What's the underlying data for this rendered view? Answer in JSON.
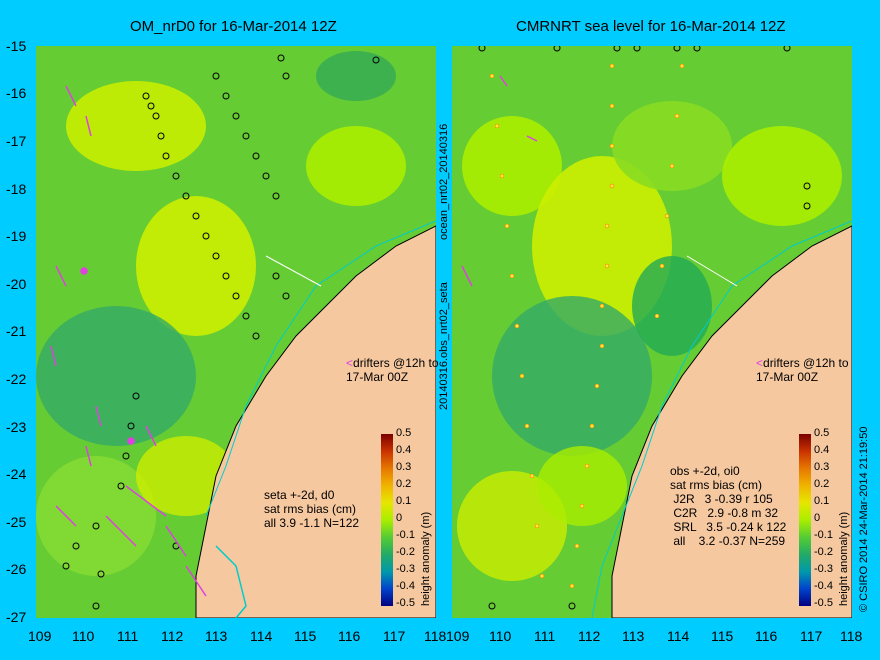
{
  "titles": {
    "left": "OM_nrD0 for 16-Mar-2014 12Z",
    "right": "CMRNRT sea level  for 16-Mar-2014 12Z"
  },
  "y_ticks": [
    "-15",
    "-16",
    "-17",
    "-18",
    "-19",
    "-20",
    "-21",
    "-22",
    "-23",
    "-24",
    "-25",
    "-26",
    "-27"
  ],
  "x_ticks": [
    "109",
    "110",
    "111",
    "112",
    "113",
    "114",
    "115",
    "116",
    "117",
    "118"
  ],
  "side_labels": {
    "left_panel": "ocean_nrt02_20140316",
    "middle": "20140316.obs_nrt02_seta",
    "right_edge": "© CSIRO 2014   24-Mar-2014 21:19:50"
  },
  "drifters": {
    "left": "drifters @12h to\n17-Mar 00Z",
    "right": "drifters @12h to\n17-Mar 00Z"
  },
  "stats": {
    "left": "seta +-2d, d0\nsat rms bias (cm)\nall 3.9 -1.1 N=122",
    "right": "obs +-2d, oi0\nsat rms bias (cm)\n J2R   3 -0.39 r 105\n C2R   2.9 -0.8 m 32\n SRL   3.5 -0.24 k 122\n all    3.2 -0.37 N=259"
  },
  "legend": {
    "title": "height anomaly (m)",
    "ticks": [
      "0.5",
      "0.4",
      "0.3",
      "0.2",
      "0.1",
      "0",
      "-0.1",
      "-0.2",
      "-0.3",
      "-0.4",
      "-0.5"
    ],
    "colors": [
      "#7a0000",
      "#c83200",
      "#e67800",
      "#f0b400",
      "#e6e600",
      "#aaee00",
      "#55cc33",
      "#22aa66",
      "#0099aa",
      "#0044cc",
      "#000080"
    ]
  },
  "map": {
    "region": {
      "lon": [
        109,
        118
      ],
      "lat": [
        -27,
        -15
      ]
    },
    "land_color": "#f5c8a0",
    "ocean_base": "#66cc33",
    "drifter_color": "#e040e0",
    "track_color": "#00cccc"
  }
}
